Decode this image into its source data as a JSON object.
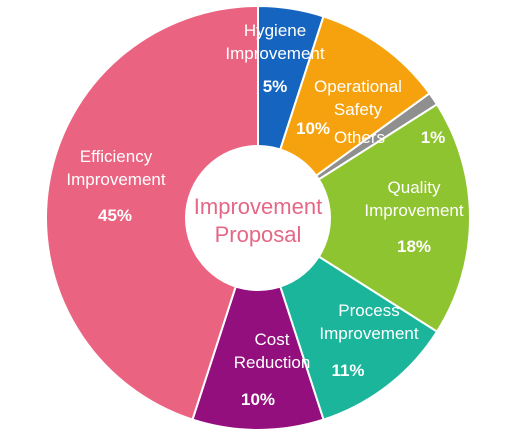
{
  "chart_data": {
    "type": "pie",
    "center_label": [
      "Improvement",
      "Proposal"
    ],
    "slices": [
      {
        "name": "Hygiene Improvement",
        "label_lines": [
          "Hygiene",
          "Improvement"
        ],
        "value": 5,
        "value_label": "5%",
        "color": "#1565c0"
      },
      {
        "name": "Operational Safety",
        "label_lines": [
          "Operational",
          "Safety"
        ],
        "value": 10,
        "value_label": "10%",
        "color": "#f6a20e"
      },
      {
        "name": "Others",
        "label_lines": [
          "Others"
        ],
        "value": 1,
        "value_label": "1%",
        "color": "#8f8f8f"
      },
      {
        "name": "Quality Improvement",
        "label_lines": [
          "Quality",
          "Improvement"
        ],
        "value": 18,
        "value_label": "18%",
        "color": "#8fc431"
      },
      {
        "name": "Process Improvement",
        "label_lines": [
          "Process",
          "Improvement"
        ],
        "value": 11,
        "value_label": "11%",
        "color": "#1bb59c"
      },
      {
        "name": "Cost Reduction",
        "label_lines": [
          "Cost",
          "Reduction"
        ],
        "value": 10,
        "value_label": "10%",
        "color": "#920f7d"
      },
      {
        "name": "Efficiency Improvement",
        "label_lines": [
          "Efficiency",
          "Improvement"
        ],
        "value": 45,
        "value_label": "45%",
        "color": "#ea6482"
      }
    ],
    "center_text_color": "#e56785",
    "legend": "none"
  }
}
